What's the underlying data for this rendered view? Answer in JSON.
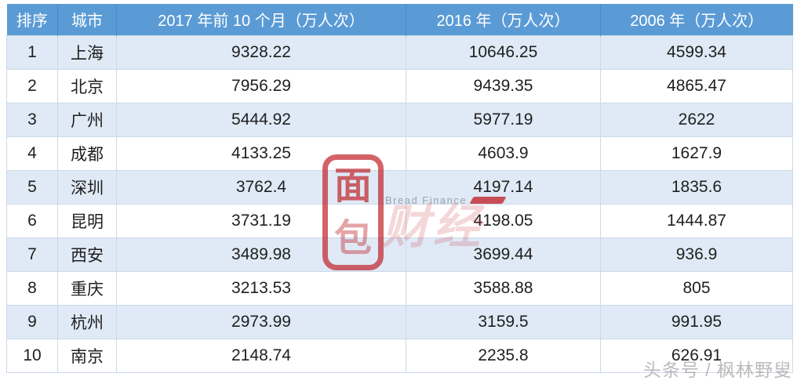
{
  "colors": {
    "header_bg": "#5b9bd5",
    "header_text": "#ffffff",
    "row_odd_bg": "#dfeaf6",
    "row_even_bg": "#ffffff",
    "grid_border": "#ccd9e9",
    "body_text": "#1f1f1f",
    "watermark_red": "#c5262b"
  },
  "chart_data": {
    "type": "table",
    "columns": [
      "排序",
      "城市",
      "2017 年前 10 个月（万人次）",
      "2016 年（万人次）",
      "2006 年（万人次）"
    ],
    "rows": [
      [
        "1",
        "上海",
        "9328.22",
        "10646.25",
        "4599.34"
      ],
      [
        "2",
        "北京",
        "7956.29",
        "9439.35",
        "4865.47"
      ],
      [
        "3",
        "广州",
        "5444.92",
        "5977.19",
        "2622"
      ],
      [
        "4",
        "成都",
        "4133.25",
        "4603.9",
        "1627.9"
      ],
      [
        "5",
        "深圳",
        "3762.4",
        "4197.14",
        "1835.6"
      ],
      [
        "6",
        "昆明",
        "3731.19",
        "4198.05",
        "1444.87"
      ],
      [
        "7",
        "西安",
        "3489.98",
        "3699.44",
        "936.9"
      ],
      [
        "8",
        "重庆",
        "3213.53",
        "3588.88",
        "805"
      ],
      [
        "9",
        "杭州",
        "2973.99",
        "3159.5",
        "991.95"
      ],
      [
        "10",
        "南京",
        "2148.74",
        "2235.8",
        "626.91"
      ]
    ]
  },
  "watermark_center": {
    "logo_top_char": "面",
    "logo_bottom_char": "包",
    "brand_en": "Bread Finance",
    "brand_cn": "财经"
  },
  "watermark_corner": {
    "text": "头条号 / 枫林野叟"
  }
}
